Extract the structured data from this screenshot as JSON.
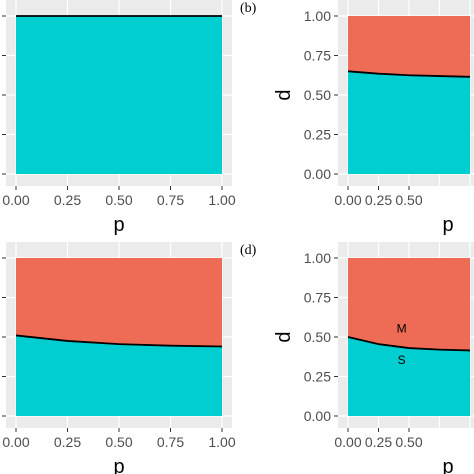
{
  "colors": {
    "panel_bg": "#ebebeb",
    "grid": "#ffffff",
    "region_M": "#ee6c55",
    "region_S": "#00ced1",
    "boundary": "#000000",
    "axis_text": "#4d4d4d",
    "title_text": "#000000"
  },
  "chart_data": [
    {
      "type": "area",
      "panel_label": "",
      "xlabel": "p",
      "ylabel": "",
      "xlim": [
        0,
        1
      ],
      "ylim": [
        0,
        1
      ],
      "x_ticks": [
        "0.00",
        "0.25",
        "0.50",
        "0.75",
        "1.00"
      ],
      "y_ticks": [],
      "boundary": {
        "x": [
          0,
          0.25,
          0.5,
          0.75,
          1.0
        ],
        "y": [
          1.0,
          1.0,
          1.0,
          1.0,
          1.0
        ]
      },
      "region_labels": []
    },
    {
      "type": "area",
      "panel_label": "(b)",
      "xlabel": "p",
      "ylabel": "d",
      "xlim": [
        0,
        1
      ],
      "ylim": [
        0,
        1
      ],
      "x_ticks": [
        "0.00",
        "0.25",
        "0.50"
      ],
      "y_ticks": [
        "0.00",
        "0.25",
        "0.50",
        "0.75",
        "1.00"
      ],
      "boundary": {
        "x": [
          0,
          0.25,
          0.5,
          0.75,
          1.0
        ],
        "y": [
          0.65,
          0.635,
          0.625,
          0.62,
          0.615
        ]
      },
      "region_labels": []
    },
    {
      "type": "area",
      "panel_label": "(d)",
      "xlabel": "p",
      "ylabel": "",
      "xlim": [
        0,
        1
      ],
      "ylim": [
        0,
        1
      ],
      "x_ticks": [
        "0.00",
        "0.25",
        "0.50",
        "0.75",
        "1.00"
      ],
      "y_ticks": [],
      "boundary": {
        "x": [
          0,
          0.25,
          0.5,
          0.75,
          1.0
        ],
        "y": [
          0.51,
          0.475,
          0.455,
          0.445,
          0.44
        ]
      },
      "region_labels": []
    },
    {
      "type": "area",
      "panel_label": "",
      "xlabel": "p",
      "ylabel": "d",
      "xlim": [
        0,
        1
      ],
      "ylim": [
        0,
        1
      ],
      "x_ticks": [
        "0.00",
        "0.25",
        "0.50"
      ],
      "y_ticks": [
        "0.00",
        "0.25",
        "0.50",
        "0.75",
        "1.00"
      ],
      "boundary": {
        "x": [
          0,
          0.25,
          0.5,
          0.75,
          1.0
        ],
        "y": [
          0.5,
          0.455,
          0.43,
          0.42,
          0.415
        ]
      },
      "region_labels": [
        {
          "text": "M",
          "x": 0.44,
          "y": 0.53
        },
        {
          "text": "S",
          "x": 0.44,
          "y": 0.33
        }
      ]
    }
  ]
}
